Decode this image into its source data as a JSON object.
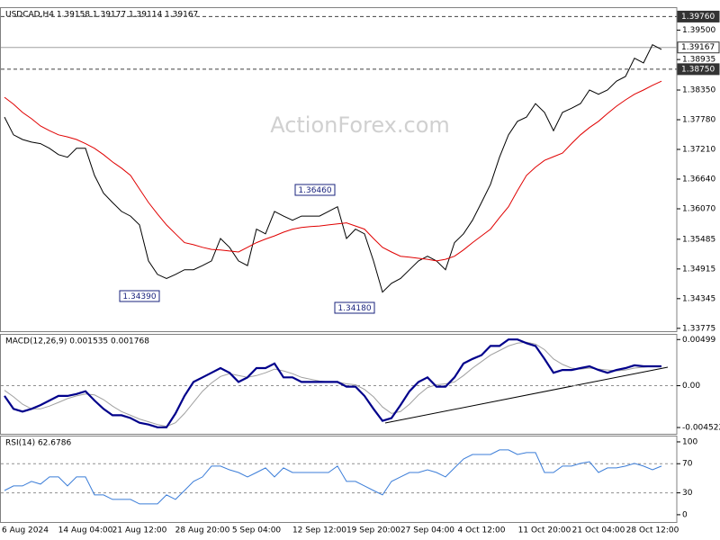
{
  "chart_data": [
    {
      "type": "line",
      "title": "USDCAD,H4 1.39158 1.39177 1.39114 1.39167",
      "watermark": "ActionForex.com",
      "ylim": [
        1.3372,
        1.3994
      ],
      "yticks": [
        {
          "value": 1.395,
          "label": "1.39500"
        },
        {
          "value": 1.38935,
          "label": "1.38935"
        },
        {
          "value": 1.3835,
          "label": "1.38350"
        },
        {
          "value": 1.3778,
          "label": "1.37780"
        },
        {
          "value": 1.3721,
          "label": "1.37210"
        },
        {
          "value": 1.3664,
          "label": "1.36640"
        },
        {
          "value": 1.3607,
          "label": "1.36070"
        },
        {
          "value": 1.35485,
          "label": "1.35485"
        },
        {
          "value": 1.34915,
          "label": "1.34915"
        },
        {
          "value": 1.34345,
          "label": "1.34345"
        },
        {
          "value": 1.33775,
          "label": "1.33775"
        }
      ],
      "levels": [
        {
          "value": 1.3976,
          "label": "1.39760",
          "dashed": true
        },
        {
          "value": 1.39167,
          "label": "1.39167",
          "dashed": false
        },
        {
          "value": 1.3875,
          "label": "1.38750",
          "dashed": true
        }
      ],
      "annotations": [
        {
          "value": 1.3646,
          "label": "1.36460"
        },
        {
          "value": 1.3439,
          "label": "1.34390"
        },
        {
          "value": 1.3418,
          "label": "1.34180"
        }
      ],
      "series": [
        {
          "color": "#000000",
          "values": [
            1.3783,
            1.3749,
            1.374,
            1.3735,
            1.3732,
            1.3723,
            1.3711,
            1.3706,
            1.3723,
            1.3723,
            1.3671,
            1.3637,
            1.3619,
            1.3602,
            1.3593,
            1.3576,
            1.3507,
            1.3481,
            1.3473,
            1.3481,
            1.349,
            1.349,
            1.3498,
            1.3507,
            1.355,
            1.3533,
            1.3507,
            1.3498,
            1.3568,
            1.3559,
            1.3602,
            1.3593,
            1.3585,
            1.3593,
            1.3593,
            1.3593,
            1.3602,
            1.3611,
            1.355,
            1.3568,
            1.3559,
            1.3507,
            1.3447,
            1.3464,
            1.3473,
            1.349,
            1.3507,
            1.3516,
            1.3507,
            1.349,
            1.3542,
            1.3559,
            1.3585,
            1.3619,
            1.3654,
            1.3706,
            1.3749,
            1.3775,
            1.3783,
            1.3809,
            1.3792,
            1.3757,
            1.3792,
            1.38,
            1.3809,
            1.3835,
            1.3827,
            1.3835,
            1.3852,
            1.3861,
            1.3896,
            1.3887,
            1.3922,
            1.3913
          ]
        },
        {
          "color": "#e00000",
          "values": [
            1.3821,
            1.3808,
            1.3792,
            1.378,
            1.3766,
            1.3757,
            1.3749,
            1.3745,
            1.374,
            1.3732,
            1.3723,
            1.3711,
            1.3697,
            1.3685,
            1.3671,
            1.3645,
            1.3619,
            1.3597,
            1.3576,
            1.3559,
            1.3542,
            1.3538,
            1.3533,
            1.3529,
            1.3528,
            1.3526,
            1.3524,
            1.3533,
            1.3542,
            1.3549,
            1.3555,
            1.3562,
            1.3568,
            1.3571,
            1.3573,
            1.3574,
            1.3576,
            1.3578,
            1.358,
            1.3574,
            1.3568,
            1.355,
            1.3533,
            1.3524,
            1.3516,
            1.3514,
            1.3512,
            1.351,
            1.3507,
            1.351,
            1.3516,
            1.3528,
            1.3542,
            1.3555,
            1.3568,
            1.359,
            1.3611,
            1.3642,
            1.3671,
            1.3687,
            1.37,
            1.3707,
            1.3714,
            1.3732,
            1.3749,
            1.3763,
            1.3775,
            1.379,
            1.3804,
            1.3816,
            1.3827,
            1.3835,
            1.3844,
            1.3852
          ]
        }
      ]
    },
    {
      "type": "line",
      "title": "MACD(12,26,9) 0.001535 0.001768",
      "ylim": [
        -0.0052,
        0.0056
      ],
      "yticks": [
        0.00499,
        {
          "value": 0,
          "label": "0.00"
        },
        -0.004522
      ],
      "guide_lines": true,
      "series": [
        {
          "color": "#a0a0a0",
          "values": [
            -0.0005,
            -0.0012,
            -0.002,
            -0.0025,
            -0.0025,
            -0.0022,
            -0.0018,
            -0.0014,
            -0.0011,
            -0.0009,
            -0.001,
            -0.0015,
            -0.0022,
            -0.0028,
            -0.0032,
            -0.0036,
            -0.0039,
            -0.0042,
            -0.0044,
            -0.004,
            -0.003,
            -0.0018,
            -0.0006,
            0.0003,
            0.001,
            0.0013,
            0.0011,
            0.0009,
            0.0011,
            0.0014,
            0.0018,
            0.0016,
            0.0013,
            0.0009,
            0.0007,
            0.0005,
            0.0004,
            0.0004,
            0.0002,
            0.0001,
            -0.0004,
            -0.0012,
            -0.0023,
            -0.003,
            -0.0028,
            -0.002,
            -0.001,
            -0.0002,
            0.0001,
            0.0002,
            0.0004,
            0.0011,
            0.0019,
            0.0026,
            0.0033,
            0.0038,
            0.0043,
            0.0046,
            0.0047,
            0.0045,
            0.0039,
            0.0029,
            0.0023,
            0.0019,
            0.0018,
            0.0019,
            0.0018,
            0.0017,
            0.0016,
            0.0017,
            0.0019,
            0.002,
            0.0021,
            0.0021
          ]
        },
        {
          "color": "#00008b",
          "values": [
            -0.0011,
            -0.0025,
            -0.0028,
            -0.0025,
            -0.0021,
            -0.0016,
            -0.0011,
            -0.0011,
            -0.0009,
            -0.0006,
            -0.0016,
            -0.0025,
            -0.0032,
            -0.0032,
            -0.0035,
            -0.004,
            -0.0042,
            -0.0045,
            -0.0045,
            -0.003,
            -0.0011,
            0.0004,
            0.0009,
            0.0014,
            0.0019,
            0.0014,
            0.0004,
            0.0009,
            0.0019,
            0.0019,
            0.0024,
            0.0009,
            0.0009,
            0.0004,
            0.0004,
            0.0004,
            0.0004,
            0.0004,
            -0.0001,
            -0.0001,
            -0.0011,
            -0.0025,
            -0.0038,
            -0.0035,
            -0.0021,
            -0.0006,
            0.0004,
            0.0009,
            -0.0001,
            -0.0001,
            0.0009,
            0.0024,
            0.0029,
            0.0033,
            0.0043,
            0.0043,
            0.005,
            0.005,
            0.0046,
            0.0043,
            0.0029,
            0.0014,
            0.0017,
            0.0017,
            0.0019,
            0.0021,
            0.0017,
            0.0014,
            0.0017,
            0.0019,
            0.0022,
            0.0021,
            0.0021,
            0.0021
          ]
        }
      ]
    },
    {
      "type": "line",
      "title": "RSI(14) 62.6786",
      "ylim": [
        -10,
        108.6
      ],
      "yticks": [
        100,
        70,
        30,
        0
      ],
      "guide_lines": true,
      "categories": [
        "6 Aug 2024",
        null,
        null,
        null,
        null,
        null,
        null,
        null,
        null,
        "14 Aug 04:00",
        null,
        null,
        null,
        null,
        null,
        "21 Aug 12:00",
        null,
        null,
        null,
        null,
        null,
        null,
        "28 Aug 20:00",
        null,
        null,
        null,
        null,
        null,
        "5 Sep 04:00",
        null,
        null,
        null,
        null,
        null,
        null,
        "12 Sep 12:00",
        null,
        null,
        null,
        null,
        null,
        "19 Sep 20:00",
        null,
        null,
        null,
        null,
        null,
        "27 Sep 04:00",
        null,
        null,
        null,
        null,
        null,
        "4 Oct 12:00",
        null,
        null,
        null,
        null,
        null,
        null,
        "11 Oct 20:00",
        null,
        null,
        null,
        null,
        null,
        "21 Oct 04:00",
        null,
        null,
        null,
        null,
        null,
        "28 Oct 12:00",
        null
      ],
      "series": [
        {
          "color": "#3b7dd8",
          "values": [
            33.3,
            39.5,
            39.5,
            45.7,
            42.0,
            51.9,
            51.9,
            39.5,
            51.9,
            51.9,
            27.2,
            27.2,
            21.0,
            21.0,
            21.0,
            14.8,
            14.8,
            14.8,
            27.2,
            21.0,
            33.3,
            45.7,
            51.9,
            66.7,
            66.7,
            61.7,
            58.0,
            51.9,
            58.0,
            64.2,
            51.9,
            64.2,
            58.0,
            58.0,
            58.0,
            58.0,
            58.0,
            66.7,
            45.7,
            45.7,
            39.5,
            33.3,
            27.2,
            45.7,
            51.9,
            58.0,
            58.0,
            61.7,
            58.0,
            51.9,
            64.2,
            76.5,
            82.7,
            82.7,
            82.7,
            88.9,
            88.9,
            82.7,
            85.2,
            85.2,
            58.0,
            58.0,
            66.7,
            66.7,
            70.4,
            72.8,
            58.0,
            64.2,
            64.2,
            66.7,
            70.4,
            66.7,
            61.7,
            66.7
          ]
        }
      ]
    }
  ]
}
